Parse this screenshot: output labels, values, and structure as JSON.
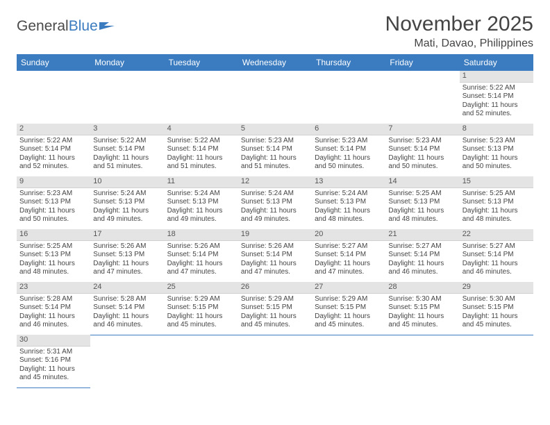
{
  "logo": {
    "text1": "General",
    "text2": "Blue"
  },
  "header": {
    "month_year": "November 2025",
    "location": "Mati, Davao, Philippines"
  },
  "colors": {
    "accent": "#3b7bbf",
    "daynum_bg": "#e4e4e4",
    "text": "#444444"
  },
  "day_names": [
    "Sunday",
    "Monday",
    "Tuesday",
    "Wednesday",
    "Thursday",
    "Friday",
    "Saturday"
  ],
  "layout": {
    "first_weekday_index": 6,
    "days_in_month": 30
  },
  "days": {
    "1": {
      "sunrise": "5:22 AM",
      "sunset": "5:14 PM",
      "daylight": "11 hours and 52 minutes."
    },
    "2": {
      "sunrise": "5:22 AM",
      "sunset": "5:14 PM",
      "daylight": "11 hours and 52 minutes."
    },
    "3": {
      "sunrise": "5:22 AM",
      "sunset": "5:14 PM",
      "daylight": "11 hours and 51 minutes."
    },
    "4": {
      "sunrise": "5:22 AM",
      "sunset": "5:14 PM",
      "daylight": "11 hours and 51 minutes."
    },
    "5": {
      "sunrise": "5:23 AM",
      "sunset": "5:14 PM",
      "daylight": "11 hours and 51 minutes."
    },
    "6": {
      "sunrise": "5:23 AM",
      "sunset": "5:14 PM",
      "daylight": "11 hours and 50 minutes."
    },
    "7": {
      "sunrise": "5:23 AM",
      "sunset": "5:14 PM",
      "daylight": "11 hours and 50 minutes."
    },
    "8": {
      "sunrise": "5:23 AM",
      "sunset": "5:13 PM",
      "daylight": "11 hours and 50 minutes."
    },
    "9": {
      "sunrise": "5:23 AM",
      "sunset": "5:13 PM",
      "daylight": "11 hours and 50 minutes."
    },
    "10": {
      "sunrise": "5:24 AM",
      "sunset": "5:13 PM",
      "daylight": "11 hours and 49 minutes."
    },
    "11": {
      "sunrise": "5:24 AM",
      "sunset": "5:13 PM",
      "daylight": "11 hours and 49 minutes."
    },
    "12": {
      "sunrise": "5:24 AM",
      "sunset": "5:13 PM",
      "daylight": "11 hours and 49 minutes."
    },
    "13": {
      "sunrise": "5:24 AM",
      "sunset": "5:13 PM",
      "daylight": "11 hours and 48 minutes."
    },
    "14": {
      "sunrise": "5:25 AM",
      "sunset": "5:13 PM",
      "daylight": "11 hours and 48 minutes."
    },
    "15": {
      "sunrise": "5:25 AM",
      "sunset": "5:13 PM",
      "daylight": "11 hours and 48 minutes."
    },
    "16": {
      "sunrise": "5:25 AM",
      "sunset": "5:13 PM",
      "daylight": "11 hours and 48 minutes."
    },
    "17": {
      "sunrise": "5:26 AM",
      "sunset": "5:13 PM",
      "daylight": "11 hours and 47 minutes."
    },
    "18": {
      "sunrise": "5:26 AM",
      "sunset": "5:14 PM",
      "daylight": "11 hours and 47 minutes."
    },
    "19": {
      "sunrise": "5:26 AM",
      "sunset": "5:14 PM",
      "daylight": "11 hours and 47 minutes."
    },
    "20": {
      "sunrise": "5:27 AM",
      "sunset": "5:14 PM",
      "daylight": "11 hours and 47 minutes."
    },
    "21": {
      "sunrise": "5:27 AM",
      "sunset": "5:14 PM",
      "daylight": "11 hours and 46 minutes."
    },
    "22": {
      "sunrise": "5:27 AM",
      "sunset": "5:14 PM",
      "daylight": "11 hours and 46 minutes."
    },
    "23": {
      "sunrise": "5:28 AM",
      "sunset": "5:14 PM",
      "daylight": "11 hours and 46 minutes."
    },
    "24": {
      "sunrise": "5:28 AM",
      "sunset": "5:14 PM",
      "daylight": "11 hours and 46 minutes."
    },
    "25": {
      "sunrise": "5:29 AM",
      "sunset": "5:15 PM",
      "daylight": "11 hours and 45 minutes."
    },
    "26": {
      "sunrise": "5:29 AM",
      "sunset": "5:15 PM",
      "daylight": "11 hours and 45 minutes."
    },
    "27": {
      "sunrise": "5:29 AM",
      "sunset": "5:15 PM",
      "daylight": "11 hours and 45 minutes."
    },
    "28": {
      "sunrise": "5:30 AM",
      "sunset": "5:15 PM",
      "daylight": "11 hours and 45 minutes."
    },
    "29": {
      "sunrise": "5:30 AM",
      "sunset": "5:15 PM",
      "daylight": "11 hours and 45 minutes."
    },
    "30": {
      "sunrise": "5:31 AM",
      "sunset": "5:16 PM",
      "daylight": "11 hours and 45 minutes."
    }
  },
  "labels": {
    "sunrise": "Sunrise: ",
    "sunset": "Sunset: ",
    "daylight": "Daylight: "
  }
}
